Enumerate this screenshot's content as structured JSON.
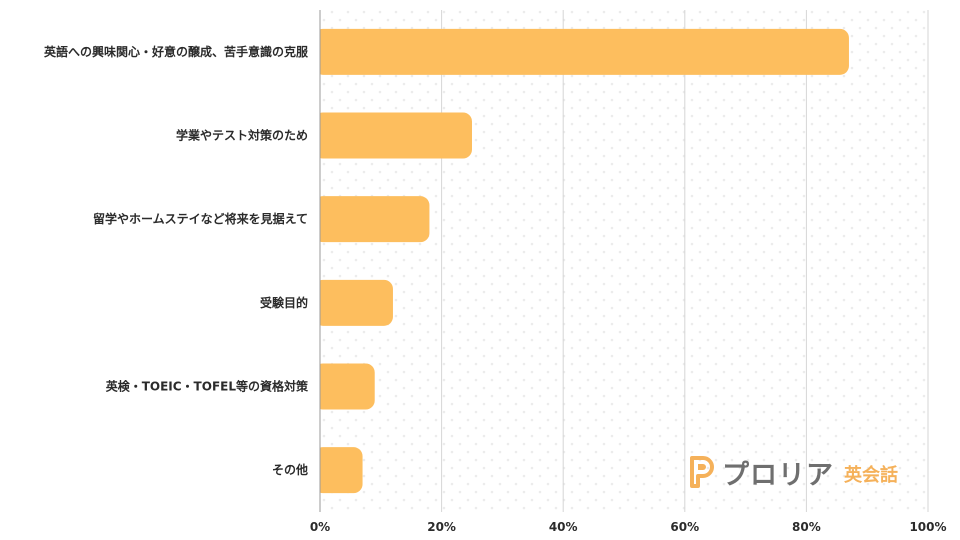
{
  "chart_data": {
    "type": "bar",
    "orientation": "horizontal",
    "categories": [
      "英語への興味関心・好意の醸成、苦手意識の克服",
      "学業やテスト対策のため",
      "留学やホームステイなど将来を見据えて",
      "受験目的",
      "英検・TOEIC・TOFEL等の資格対策",
      "その他"
    ],
    "values": [
      87,
      25,
      18,
      12,
      9,
      7
    ],
    "unit": "%",
    "xlim": [
      0,
      100
    ],
    "xticks": [
      "0%",
      "20%",
      "40%",
      "60%",
      "80%",
      "100%"
    ],
    "grid": true,
    "bar_color": "#fdbe5e",
    "title": "",
    "xlabel": "",
    "ylabel": ""
  },
  "logo": {
    "name": "プロリア",
    "sub": "英会話",
    "accent_color": "#f5b15a",
    "text_color": "#6f6f6f"
  }
}
